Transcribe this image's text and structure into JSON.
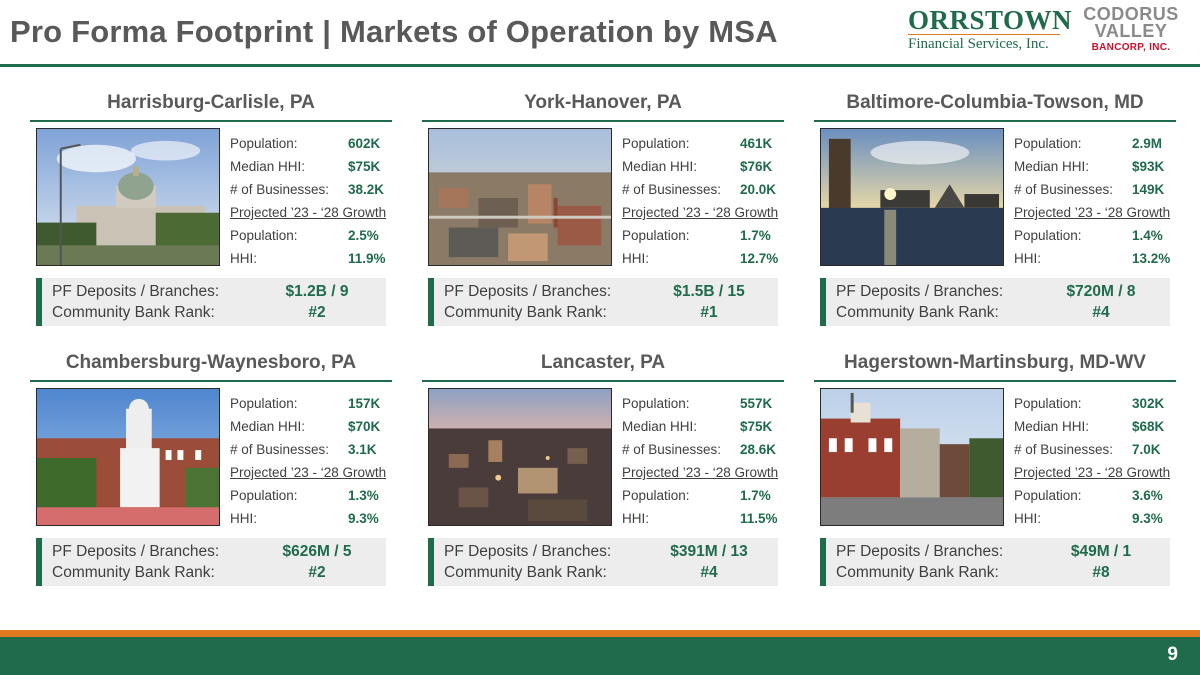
{
  "title": "Pro Forma Footprint | Markets of Operation by MSA",
  "logos": {
    "orrstown_name": "ORRSTOWN",
    "orrstown_sub": "Financial Services, Inc.",
    "codorus_line1": "CODORUS",
    "codorus_line2": "VALLEY",
    "codorus_sub": "BANCORP, INC."
  },
  "labels": {
    "population": "Population:",
    "median_hhi": "Median HHI:",
    "businesses": "# of Businesses:",
    "growth_header": "Projected ’23 - ‘28 Growth",
    "growth_population": "Population:",
    "growth_hhi": "HHI:",
    "deposits": "PF Deposits / Branches:",
    "rank": "Community Bank Rank:"
  },
  "markets": [
    {
      "name": "Harrisburg-Carlisle, PA",
      "population": "602K",
      "median_hhi": "$75K",
      "businesses": "38.2K",
      "growth_population": "2.5%",
      "growth_hhi": "11.9%",
      "deposits_branches": "$1.2B / 9",
      "rank": "#2"
    },
    {
      "name": "York-Hanover, PA",
      "population": "461K",
      "median_hhi": "$76K",
      "businesses": "20.0K",
      "growth_population": "1.7%",
      "growth_hhi": "12.7%",
      "deposits_branches": "$1.5B / 15",
      "rank": "#1"
    },
    {
      "name": "Baltimore-Columbia-Towson, MD",
      "population": "2.9M",
      "median_hhi": "$93K",
      "businesses": "149K",
      "growth_population": "1.4%",
      "growth_hhi": "13.2%",
      "deposits_branches": "$720M / 8",
      "rank": "#4"
    },
    {
      "name": "Chambersburg-Waynesboro, PA",
      "population": "157K",
      "median_hhi": "$70K",
      "businesses": "3.1K",
      "growth_population": "1.3%",
      "growth_hhi": "9.3%",
      "deposits_branches": "$626M / 5",
      "rank": "#2"
    },
    {
      "name": "Lancaster, PA",
      "population": "557K",
      "median_hhi": "$75K",
      "businesses": "28.6K",
      "growth_population": "1.7%",
      "growth_hhi": "11.5%",
      "deposits_branches": "$391M / 13",
      "rank": "#4"
    },
    {
      "name": "Hagerstown-Martinsburg, MD-WV",
      "population": "302K",
      "median_hhi": "$68K",
      "businesses": "7.0K",
      "growth_population": "3.6%",
      "growth_hhi": "9.3%",
      "deposits_branches": "$49M / 1",
      "rank": "#8"
    }
  ],
  "page_number": "9",
  "colors": {
    "brand_green": "#1f6b4c",
    "brand_orange": "#e07a1f",
    "codorus_red": "#c8102e",
    "title_gray": "#595959"
  }
}
